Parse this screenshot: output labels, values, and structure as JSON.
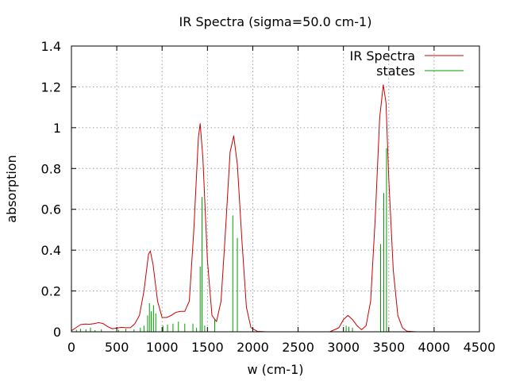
{
  "chart_data": {
    "type": "line",
    "title": "IR Spectra (sigma=50.0 cm-1)",
    "xlabel": "w (cm-1)",
    "ylabel": "absorption",
    "xlim": [
      0,
      4500
    ],
    "ylim": [
      0,
      1.4
    ],
    "xticks": [
      0,
      500,
      1000,
      1500,
      2000,
      2500,
      3000,
      3500,
      4000,
      4500
    ],
    "yticks": [
      0,
      0.2,
      0.4,
      0.6,
      0.8,
      1.0,
      1.2,
      1.4
    ],
    "xtick_labels": [
      "0",
      "500",
      "1000",
      "1500",
      "2000",
      "2500",
      "3000",
      "3500",
      "4000",
      "4500"
    ],
    "ytick_labels": [
      "0",
      "0.2",
      "0.4",
      "0.6",
      "0.8",
      "1",
      "1.2",
      "1.4"
    ],
    "grid": true,
    "legend_position": "top-right",
    "series": [
      {
        "name": "IR Spectra",
        "color": "#cc0000",
        "style": "line",
        "points": [
          [
            0,
            0.005
          ],
          [
            50,
            0.02
          ],
          [
            100,
            0.035
          ],
          [
            150,
            0.038
          ],
          [
            200,
            0.037
          ],
          [
            250,
            0.04
          ],
          [
            300,
            0.045
          ],
          [
            350,
            0.04
          ],
          [
            400,
            0.025
          ],
          [
            450,
            0.015
          ],
          [
            500,
            0.018
          ],
          [
            550,
            0.022
          ],
          [
            600,
            0.02
          ],
          [
            650,
            0.02
          ],
          [
            700,
            0.04
          ],
          [
            750,
            0.08
          ],
          [
            800,
            0.2
          ],
          [
            850,
            0.38
          ],
          [
            870,
            0.395
          ],
          [
            900,
            0.33
          ],
          [
            950,
            0.15
          ],
          [
            1000,
            0.07
          ],
          [
            1050,
            0.07
          ],
          [
            1100,
            0.08
          ],
          [
            1150,
            0.095
          ],
          [
            1200,
            0.1
          ],
          [
            1250,
            0.1
          ],
          [
            1300,
            0.15
          ],
          [
            1350,
            0.5
          ],
          [
            1400,
            0.95
          ],
          [
            1420,
            1.02
          ],
          [
            1450,
            0.85
          ],
          [
            1500,
            0.35
          ],
          [
            1550,
            0.08
          ],
          [
            1600,
            0.05
          ],
          [
            1650,
            0.15
          ],
          [
            1700,
            0.5
          ],
          [
            1750,
            0.88
          ],
          [
            1790,
            0.96
          ],
          [
            1830,
            0.82
          ],
          [
            1880,
            0.45
          ],
          [
            1930,
            0.12
          ],
          [
            1980,
            0.02
          ],
          [
            2050,
            0.002
          ],
          [
            2150,
            0.0
          ],
          [
            2850,
            0.0
          ],
          [
            2950,
            0.02
          ],
          [
            3000,
            0.06
          ],
          [
            3050,
            0.08
          ],
          [
            3100,
            0.06
          ],
          [
            3150,
            0.03
          ],
          [
            3200,
            0.01
          ],
          [
            3250,
            0.03
          ],
          [
            3300,
            0.15
          ],
          [
            3350,
            0.55
          ],
          [
            3400,
            1.05
          ],
          [
            3440,
            1.21
          ],
          [
            3470,
            1.12
          ],
          [
            3500,
            0.75
          ],
          [
            3550,
            0.3
          ],
          [
            3600,
            0.08
          ],
          [
            3650,
            0.02
          ],
          [
            3700,
            0.003
          ],
          [
            3800,
            0.0
          ],
          [
            4500,
            0.0
          ]
        ]
      },
      {
        "name": "states",
        "color": "#00a000",
        "style": "impulses",
        "points": [
          [
            55,
            0.01
          ],
          [
            100,
            0.015
          ],
          [
            160,
            0.012
          ],
          [
            210,
            0.02
          ],
          [
            260,
            0.008
          ],
          [
            330,
            0.012
          ],
          [
            520,
            0.01
          ],
          [
            600,
            0.015
          ],
          [
            690,
            0.012
          ],
          [
            760,
            0.02
          ],
          [
            800,
            0.03
          ],
          [
            840,
            0.08
          ],
          [
            860,
            0.14
          ],
          [
            880,
            0.1
          ],
          [
            905,
            0.13
          ],
          [
            930,
            0.09
          ],
          [
            1010,
            0.03
          ],
          [
            1060,
            0.035
          ],
          [
            1120,
            0.04
          ],
          [
            1180,
            0.05
          ],
          [
            1250,
            0.04
          ],
          [
            1340,
            0.04
          ],
          [
            1380,
            0.02
          ],
          [
            1420,
            0.32
          ],
          [
            1440,
            0.66
          ],
          [
            1470,
            0.03
          ],
          [
            1580,
            0.06
          ],
          [
            1780,
            0.57
          ],
          [
            1830,
            0.46
          ],
          [
            3030,
            0.03
          ],
          [
            3060,
            0.025
          ],
          [
            3100,
            0.02
          ],
          [
            3410,
            0.43
          ],
          [
            3445,
            0.68
          ],
          [
            3475,
            0.9
          ]
        ]
      }
    ]
  }
}
